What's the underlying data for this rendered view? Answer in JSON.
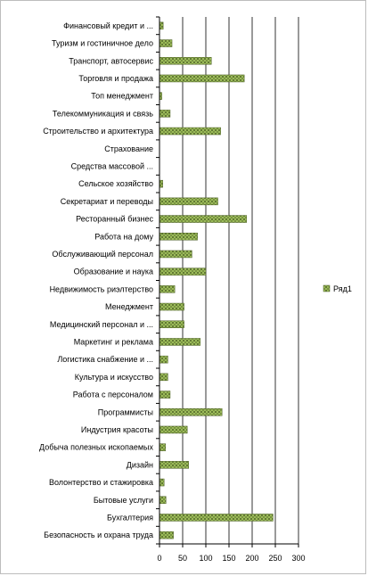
{
  "chart_data": {
    "type": "bar",
    "orientation": "horizontal",
    "categories": [
      "Финансовый кредит и ...",
      "Туризм и гостиничное дело",
      "Транспорт, автосервис",
      "Торговля и продажа",
      "Топ менеджмент",
      "Телекоммуникация и связь",
      "Строительство и архитектура",
      "Страхование",
      "Средства массовой ...",
      "Сельское хозяйство",
      "Секретариат и переводы",
      "Ресторанный бизнес",
      "Работа на дому",
      "Обслуживающий персонал",
      "Образование и наука",
      "Недвижимость риэлтерство",
      "Менеджмент",
      "Медицинский персонал и ...",
      "Маркетинг и реклама",
      "Логистика снабжение и ...",
      "Культура и искусство",
      "Работа с персоналом",
      "Программисты",
      "Индустрия красоты",
      "Добыча полезных ископаемых",
      "Дизайн",
      "Волонтерство и стажировка",
      "Бытовые услуги",
      "Бухгалтерия",
      "Безопасность и охрана труда"
    ],
    "series": [
      {
        "name": "Ряд1",
        "values": [
          8,
          27,
          112,
          183,
          5,
          23,
          132,
          0,
          0,
          7,
          126,
          188,
          82,
          70,
          100,
          33,
          53,
          53,
          88,
          18,
          18,
          23,
          135,
          60,
          13,
          63,
          10,
          14,
          245,
          30
        ]
      }
    ],
    "x_ticks": [
      "0",
      "50",
      "100",
      "150",
      "200",
      "250",
      "300"
    ],
    "xlim": [
      0,
      300
    ],
    "grid": "vertical",
    "legend": "right",
    "colors": {
      "bar_fill": "#9bbb59",
      "bar_hatch": "#4f6228",
      "grid": "#000000",
      "axis": "#000000"
    }
  }
}
